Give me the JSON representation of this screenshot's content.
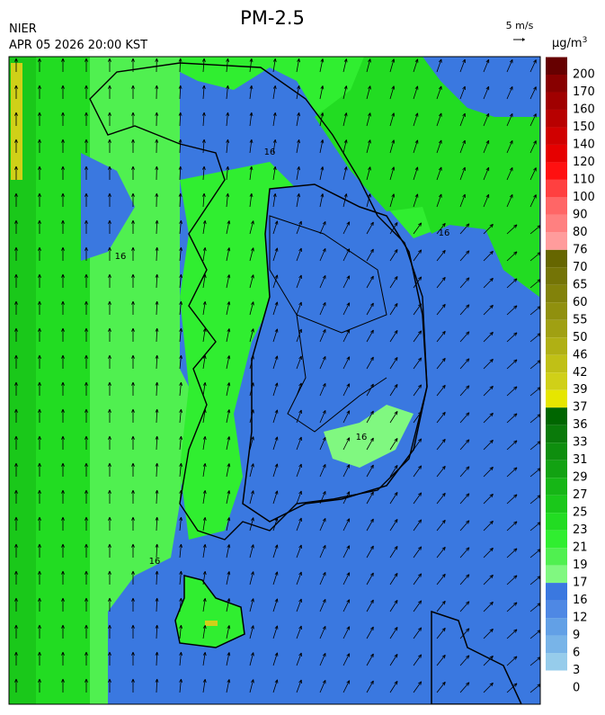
{
  "header": {
    "title": "PM-2.5",
    "agency": "NIER",
    "datetime": "APR 05 2026 20:00 KST",
    "wind_scale": "5 m/s",
    "unit": "μg/m",
    "unit_sup": "3"
  },
  "colorbar": {
    "labels": [
      200,
      170,
      160,
      150,
      140,
      120,
      110,
      100,
      90,
      80,
      76,
      70,
      65,
      60,
      55,
      50,
      46,
      42,
      39,
      37,
      36,
      33,
      31,
      29,
      27,
      25,
      23,
      21,
      19,
      17,
      16,
      12,
      9,
      6,
      3,
      0
    ],
    "colors": [
      "#660000",
      "#880000",
      "#a00000",
      "#b80000",
      "#d00000",
      "#e60000",
      "#ff1010",
      "#ff4040",
      "#ff6666",
      "#ff8080",
      "#ff9c9c",
      "#666600",
      "#747406",
      "#82820a",
      "#90900e",
      "#a0a012",
      "#b0b014",
      "#c0c016",
      "#d0d018",
      "#e6e600",
      "#006600",
      "#0a7a0a",
      "#0e8e0e",
      "#12a212",
      "#16b616",
      "#1ac81a",
      "#22dc22",
      "#30ee30",
      "#50f050",
      "#80f880",
      "#3a78e0",
      "#4e88e4",
      "#62a0e6",
      "#78b4e8",
      "#96cceb"
    ]
  },
  "contour_labels": [
    "16",
    "16",
    "16",
    "16",
    "16"
  ]
}
